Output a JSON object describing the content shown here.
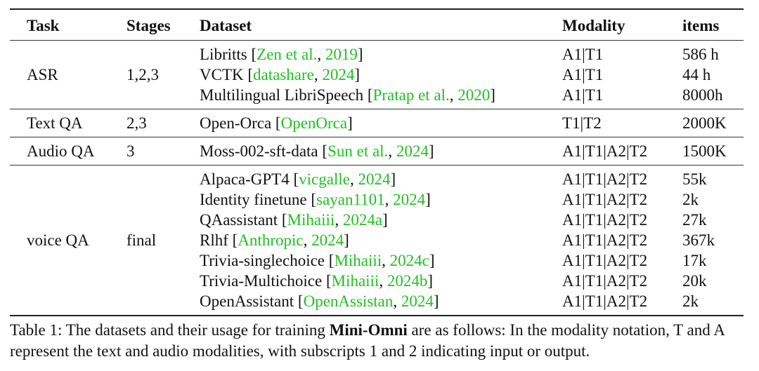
{
  "header": {
    "task": "Task",
    "stages": "Stages",
    "dataset": "Dataset",
    "modality": "Modality",
    "items": "items"
  },
  "groups": [
    {
      "task": "ASR",
      "stages": "1,2,3",
      "rows": [
        {
          "name": "Libritts",
          "cite_author": "Zen et al.",
          "cite_year": "2019",
          "modality": "A1|T1",
          "items": "586 h"
        },
        {
          "name": "VCTK",
          "cite_author": "datashare",
          "cite_year": "2024",
          "modality": "A1|T1",
          "items": "44 h"
        },
        {
          "name": "Multilingual LibriSpeech",
          "cite_author": "Pratap et al.",
          "cite_year": "2020",
          "modality": "A1|T1",
          "items": "8000h"
        }
      ]
    },
    {
      "task": "Text QA",
      "stages": "2,3",
      "rows": [
        {
          "name": "Open-Orca",
          "cite_author": "OpenOrca",
          "cite_year": "",
          "modality": "T1|T2",
          "items": "2000K"
        }
      ]
    },
    {
      "task": "Audio QA",
      "stages": "3",
      "rows": [
        {
          "name": "Moss-002-sft-data",
          "cite_author": "Sun et al.",
          "cite_year": "2024",
          "modality": "A1|T1|A2|T2",
          "items": "1500K"
        }
      ]
    },
    {
      "task": "voice QA",
      "stages": "final",
      "rows": [
        {
          "name": "Alpaca-GPT4",
          "cite_author": "vicgalle",
          "cite_year": "2024",
          "modality": "A1|T1|A2|T2",
          "items": "55k"
        },
        {
          "name": "Identity finetune",
          "cite_author": "sayan1101",
          "cite_year": "2024",
          "modality": "A1|T1|A2|T2",
          "items": "2k"
        },
        {
          "name": "QAassistant",
          "cite_author": "Mihaiii",
          "cite_year": "2024a",
          "modality": "A1|T1|A2|T2",
          "items": "27k"
        },
        {
          "name": "Rlhf",
          "cite_author": "Anthropic",
          "cite_year": "2024",
          "modality": "A1|T1|A2|T2",
          "items": "367k"
        },
        {
          "name": "Trivia-singlechoice",
          "cite_author": "Mihaiii",
          "cite_year": "2024c",
          "modality": "A1|T1|A2|T2",
          "items": "17k"
        },
        {
          "name": "Trivia-Multichoice",
          "cite_author": "Mihaiii",
          "cite_year": "2024b",
          "modality": "A1|T1|A2|T2",
          "items": "20k"
        },
        {
          "name": "OpenAssistant",
          "cite_author": "OpenAssistan",
          "cite_year": "2024",
          "modality": "A1|T1|A2|T2",
          "items": "2k"
        }
      ]
    }
  ],
  "caption": {
    "prefix": "Table 1: The datasets and their usage for training ",
    "bold": "Mini-Omni",
    "suffix": " are as follows: In the modality notation, T and A represent the text and audio modalities, with subscripts 1 and 2 indicating input or output."
  },
  "colors": {
    "citation": "#22c022",
    "text": "#111111"
  }
}
